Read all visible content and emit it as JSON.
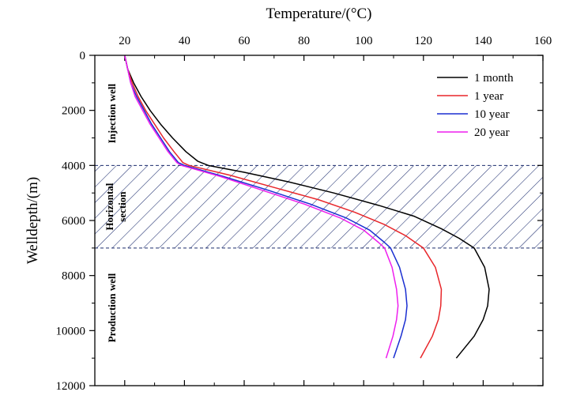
{
  "chart_data": {
    "type": "line",
    "xlabel": "Temperature/(°C)",
    "ylabel": "Welldepth/(m)",
    "xlim": [
      10,
      160
    ],
    "ylim": [
      0,
      12000
    ],
    "x_axis_position": "top",
    "y_axis_inverted": true,
    "x_ticks": [
      20,
      40,
      60,
      80,
      100,
      120,
      140,
      160
    ],
    "y_ticks": [
      0,
      2000,
      4000,
      6000,
      8000,
      10000,
      12000
    ],
    "legend_position": "top-right",
    "regions": [
      {
        "label": "Injection well",
        "y_range": [
          0,
          4000
        ],
        "hatched": false
      },
      {
        "label": "Horizontal section",
        "y_range": [
          4000,
          7000
        ],
        "hatched": true
      },
      {
        "label": "Production well",
        "y_range": [
          7000,
          11000
        ],
        "hatched": false
      }
    ],
    "series": [
      {
        "name": "1 month",
        "color": "#000000",
        "points": [
          [
            20,
            0
          ],
          [
            21,
            500
          ],
          [
            23,
            1000
          ],
          [
            25.5,
            1500
          ],
          [
            28.5,
            2000
          ],
          [
            32,
            2500
          ],
          [
            36,
            3000
          ],
          [
            40.5,
            3500
          ],
          [
            44.5,
            3850
          ],
          [
            48,
            4000
          ],
          [
            60,
            4250
          ],
          [
            75,
            4600
          ],
          [
            90,
            5000
          ],
          [
            105,
            5450
          ],
          [
            117,
            5850
          ],
          [
            126,
            6300
          ],
          [
            132,
            6650
          ],
          [
            137,
            7000
          ],
          [
            140.5,
            7700
          ],
          [
            142,
            8500
          ],
          [
            141.5,
            9100
          ],
          [
            140,
            9600
          ],
          [
            137,
            10200
          ],
          [
            131,
            11000
          ]
        ]
      },
      {
        "name": "1 year",
        "color": "#e8262a",
        "points": [
          [
            20,
            0
          ],
          [
            21,
            500
          ],
          [
            22.5,
            1000
          ],
          [
            24.5,
            1500
          ],
          [
            27,
            2000
          ],
          [
            30,
            2500
          ],
          [
            33,
            3000
          ],
          [
            36.5,
            3500
          ],
          [
            39.5,
            3900
          ],
          [
            41.5,
            4000
          ],
          [
            55,
            4350
          ],
          [
            70,
            4800
          ],
          [
            85,
            5250
          ],
          [
            97,
            5700
          ],
          [
            107,
            6150
          ],
          [
            114,
            6550
          ],
          [
            120,
            7000
          ],
          [
            124,
            7700
          ],
          [
            126,
            8500
          ],
          [
            125.8,
            9100
          ],
          [
            125,
            9600
          ],
          [
            123,
            10200
          ],
          [
            119,
            11000
          ]
        ]
      },
      {
        "name": "10 year",
        "color": "#1a2fd1",
        "points": [
          [
            20,
            0
          ],
          [
            21,
            500
          ],
          [
            22,
            1000
          ],
          [
            24,
            1500
          ],
          [
            26.5,
            2000
          ],
          [
            29,
            2500
          ],
          [
            32,
            3000
          ],
          [
            35,
            3500
          ],
          [
            38,
            3900
          ],
          [
            40,
            4000
          ],
          [
            53,
            4400
          ],
          [
            68,
            4900
          ],
          [
            82,
            5400
          ],
          [
            94,
            5900
          ],
          [
            102,
            6350
          ],
          [
            107,
            6800
          ],
          [
            109,
            7000
          ],
          [
            112,
            7700
          ],
          [
            114,
            8500
          ],
          [
            114.5,
            9100
          ],
          [
            114,
            9600
          ],
          [
            112.5,
            10200
          ],
          [
            110,
            11000
          ]
        ]
      },
      {
        "name": "20 year",
        "color": "#ee1fee",
        "points": [
          [
            20,
            0
          ],
          [
            21,
            500
          ],
          [
            22,
            1000
          ],
          [
            23.5,
            1500
          ],
          [
            26,
            2000
          ],
          [
            28.5,
            2500
          ],
          [
            31.5,
            3000
          ],
          [
            34.5,
            3500
          ],
          [
            37.5,
            3900
          ],
          [
            39,
            4000
          ],
          [
            52,
            4400
          ],
          [
            66,
            4900
          ],
          [
            80,
            5400
          ],
          [
            92,
            5900
          ],
          [
            100,
            6350
          ],
          [
            105,
            6800
          ],
          [
            107,
            7000
          ],
          [
            109.5,
            7700
          ],
          [
            111,
            8500
          ],
          [
            111.5,
            9100
          ],
          [
            111,
            9600
          ],
          [
            109.8,
            10200
          ],
          [
            107.5,
            11000
          ]
        ]
      }
    ]
  }
}
